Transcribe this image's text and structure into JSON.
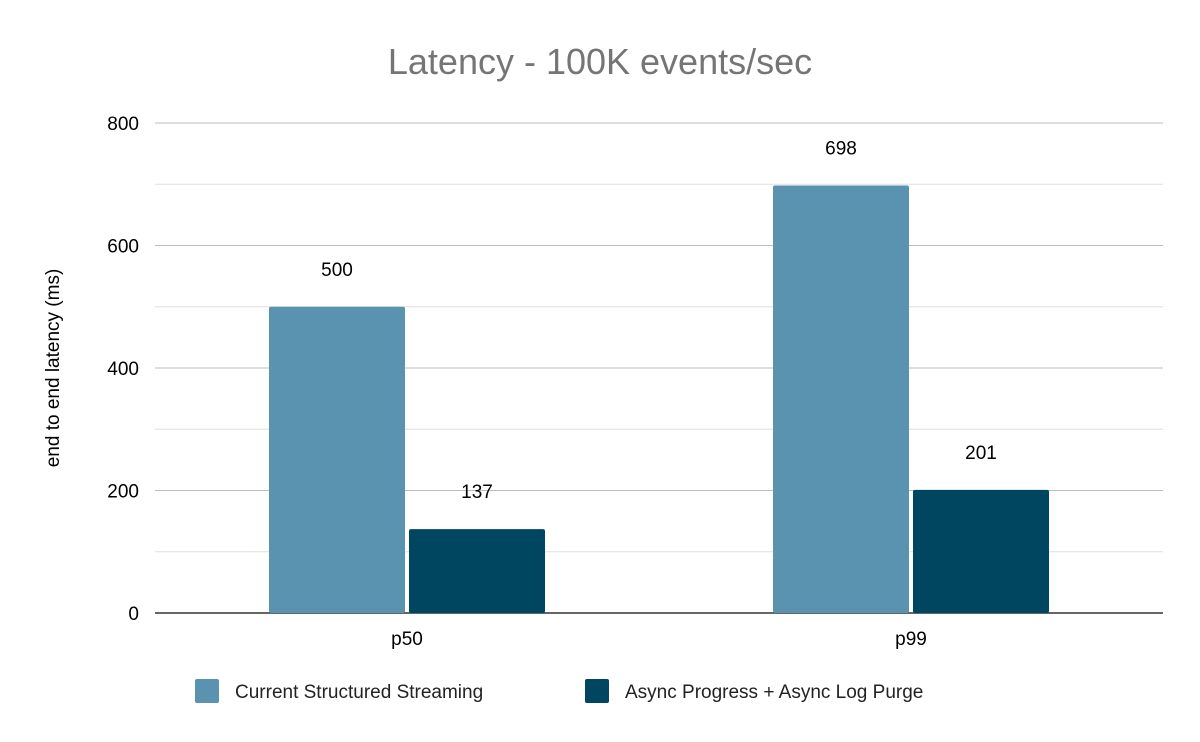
{
  "chart_data": {
    "type": "bar",
    "title": "Latency - 100K events/sec",
    "xlabel": "",
    "ylabel": "end to end latency (ms)",
    "categories": [
      "p50",
      "p99"
    ],
    "series": [
      {
        "name": "Current Structured Streaming",
        "values": [
          500,
          698
        ],
        "color": "#5a93b0"
      },
      {
        "name": "Async Progress + Async Log Purge",
        "values": [
          137,
          201
        ],
        "color": "#014661"
      }
    ],
    "ylim": [
      0,
      800
    ],
    "yticks": [
      0,
      200,
      400,
      600,
      800
    ],
    "minor_grid_step": 100,
    "grid": true,
    "data_labels": true,
    "legend": "bottom"
  }
}
